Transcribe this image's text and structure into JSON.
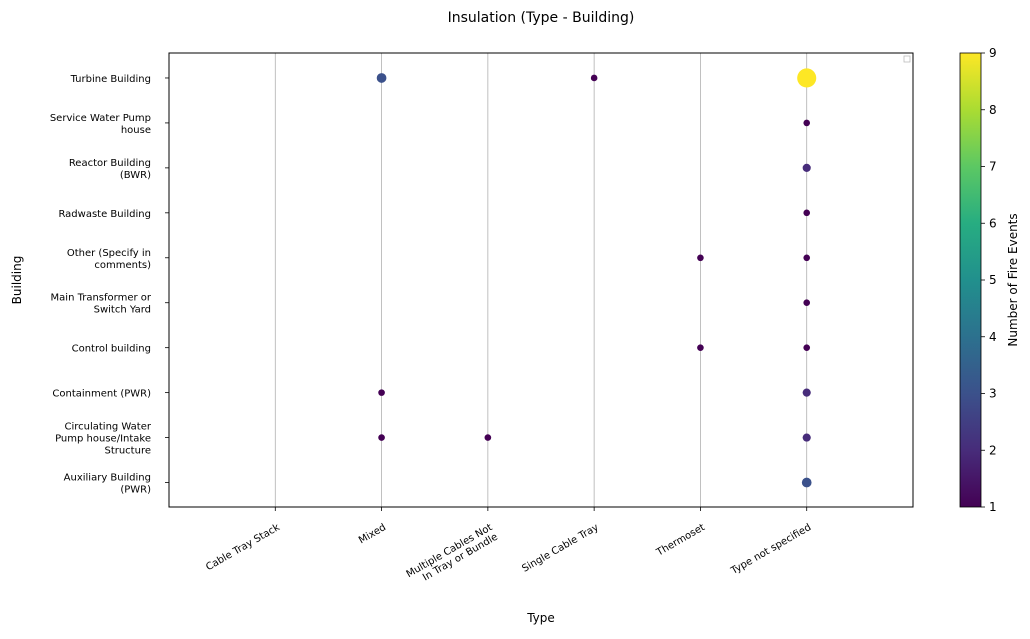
{
  "chart_data": {
    "type": "scatter",
    "title": "Insulation (Type - Building)",
    "xlabel": "Type",
    "ylabel": "Building",
    "x_categories": [
      "Cable Tray Stack",
      "Mixed",
      "Multiple Cables Not\nIn Tray or Bundle",
      "Single Cable Tray",
      "Thermoset",
      "Type not specified"
    ],
    "y_categories": [
      "Auxiliary Building\n(PWR)",
      "Circulating Water\nPump house/Intake\nStructure",
      "Containment (PWR)",
      "Control building",
      "Main Transformer or\nSwitch Yard",
      "Other (Specify in\ncomments)",
      "Radwaste Building",
      "Reactor Building\n(BWR)",
      "Service Water Pump\nhouse",
      "Turbine Building"
    ],
    "points": [
      {
        "x": "Mixed",
        "y": "Turbine Building",
        "value": 3
      },
      {
        "x": "Single Cable Tray",
        "y": "Turbine Building",
        "value": 1
      },
      {
        "x": "Type not specified",
        "y": "Turbine Building",
        "value": 9
      },
      {
        "x": "Type not specified",
        "y": "Service Water Pump\nhouse",
        "value": 1
      },
      {
        "x": "Type not specified",
        "y": "Reactor Building\n(BWR)",
        "value": 2
      },
      {
        "x": "Type not specified",
        "y": "Radwaste Building",
        "value": 1
      },
      {
        "x": "Thermoset",
        "y": "Other (Specify in\ncomments)",
        "value": 1
      },
      {
        "x": "Type not specified",
        "y": "Other (Specify in\ncomments)",
        "value": 1
      },
      {
        "x": "Type not specified",
        "y": "Main Transformer or\nSwitch Yard",
        "value": 1
      },
      {
        "x": "Thermoset",
        "y": "Control building",
        "value": 1
      },
      {
        "x": "Type not specified",
        "y": "Control building",
        "value": 1
      },
      {
        "x": "Mixed",
        "y": "Containment (PWR)",
        "value": 1
      },
      {
        "x": "Type not specified",
        "y": "Containment (PWR)",
        "value": 2
      },
      {
        "x": "Mixed",
        "y": "Circulating Water\nPump house/Intake\nStructure",
        "value": 1
      },
      {
        "x": "Multiple Cables Not\nIn Tray or Bundle",
        "y": "Circulating Water\nPump house/Intake\nStructure",
        "value": 1
      },
      {
        "x": "Type not specified",
        "y": "Circulating Water\nPump house/Intake\nStructure",
        "value": 2
      },
      {
        "x": "Type not specified",
        "y": "Auxiliary Building\n(PWR)",
        "value": 3
      }
    ],
    "colorbar": {
      "label": "Number of Fire Events",
      "range": [
        1,
        9
      ],
      "ticks": [
        "1",
        "2",
        "3",
        "4",
        "5",
        "6",
        "7",
        "8",
        "9"
      ],
      "colormap": "viridis"
    },
    "grid": "vertical"
  }
}
